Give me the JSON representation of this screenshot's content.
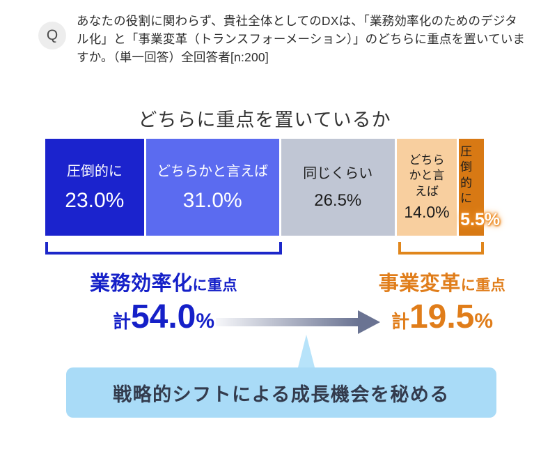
{
  "question": {
    "badge": "Q",
    "text": "あなたの役割に関わらず、貴社全体としてのDXは、「業務効率化のためのデジタル化」と「事業変革（トランスフォーメーション）」のどちらに重点を置いていますか。（単一回答）全回答者[n:200]"
  },
  "chart_data": {
    "type": "bar",
    "variant": "horizontal-stacked-100pct",
    "title": "どちらに重点を置いているか",
    "unit": "%",
    "xlim": [
      0,
      100
    ],
    "categories": [
      "圧倒的に",
      "どちらかと言えば",
      "同じくらい",
      "どちらかと言えば",
      "圧倒的に"
    ],
    "values": [
      23.0,
      31.0,
      26.5,
      14.0,
      5.5
    ],
    "segments": [
      {
        "label": "圧倒的に",
        "value": 23.0,
        "value_label": "23.0%",
        "color": "#1b23cd"
      },
      {
        "label": "どちらかと言えば",
        "value": 31.0,
        "value_label": "31.0%",
        "color": "#5b6bf0"
      },
      {
        "label": "同じくらい",
        "value": 26.5,
        "value_label": "26.5%",
        "color": "#c0c6d4"
      },
      {
        "label": "どちらかと言えば",
        "value": 14.0,
        "value_label": "14.0%",
        "color": "#f8cf9f"
      },
      {
        "label": "圧倒的に",
        "value": 5.5,
        "value_label": "5.5%",
        "color": "#d87914"
      }
    ],
    "groups": [
      {
        "name": "業務効率化",
        "suffix": "に重点",
        "total_prefix": "計",
        "total_value": "54.0",
        "total_unit": "%",
        "total": 54.0,
        "color": "#1520c8"
      },
      {
        "name": "事業変革",
        "suffix": "に重点",
        "total_prefix": "計",
        "total_value": "19.5",
        "total_unit": "%",
        "total": 19.5,
        "color": "#e07d1a"
      }
    ],
    "legend_position": "none",
    "grid": false
  },
  "callout": {
    "text": "戦略的シフトによる成長機会を秘める",
    "bg_color": "#a9dbf7",
    "text_color": "#333b4d"
  },
  "colors": {
    "arrow_gradient_start": "#f6f7fa",
    "arrow_gradient_end": "#6a7392",
    "bracket_blue": "#1c27c9",
    "bracket_orange": "#e0861c",
    "title_color": "#333333"
  }
}
